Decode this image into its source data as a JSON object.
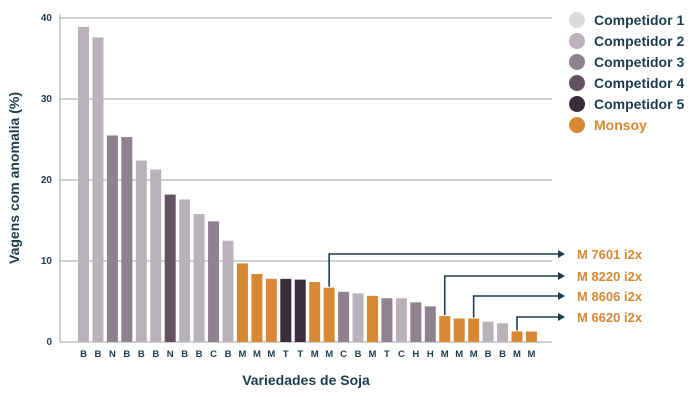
{
  "chart_data": {
    "type": "bar",
    "title": "",
    "xlabel": "Variedades de Soja",
    "ylabel": "Vagens com anomalia (%)",
    "ylim": [
      0,
      40
    ],
    "yticks": [
      0,
      10,
      20,
      30,
      40
    ],
    "grid": true,
    "legend_position": "top-right",
    "categories": [
      "B",
      "B",
      "N",
      "B",
      "B",
      "B",
      "N",
      "B",
      "B",
      "C",
      "B",
      "M",
      "M",
      "M",
      "T",
      "T",
      "M",
      "M",
      "C",
      "B",
      "M",
      "T",
      "C",
      "H",
      "H",
      "M",
      "M",
      "M",
      "B",
      "B",
      "M",
      "M"
    ],
    "values": [
      38.9,
      37.6,
      25.5,
      25.3,
      22.4,
      21.3,
      18.2,
      17.6,
      15.8,
      14.9,
      12.5,
      9.7,
      8.4,
      7.8,
      7.8,
      7.7,
      7.4,
      6.7,
      6.2,
      6.0,
      5.7,
      5.4,
      5.4,
      4.9,
      4.4,
      3.2,
      2.9,
      2.9,
      2.5,
      2.3,
      1.3,
      1.3
    ],
    "groups": [
      1,
      1,
      2,
      2,
      1,
      1,
      3,
      1,
      1,
      2,
      1,
      5,
      5,
      5,
      4,
      4,
      5,
      5,
      2,
      1,
      5,
      2,
      1,
      2,
      2,
      5,
      5,
      5,
      1,
      1,
      5,
      5
    ],
    "series": [
      {
        "name": "Competidor 1",
        "color": "#dcdadc"
      },
      {
        "name": "Competidor 2",
        "color": "#bab2b9"
      },
      {
        "name": "Competidor 3",
        "color": "#8f8190"
      },
      {
        "name": "Competidor 4",
        "color": "#635263"
      },
      {
        "name": "Competidor 5",
        "color": "#3b2c3d"
      },
      {
        "name": "Monsoy",
        "color": "#d88833"
      }
    ],
    "annotations": [
      {
        "label": "M 7601 i2x",
        "bar_index": 17
      },
      {
        "label": "M 8220 i2x",
        "bar_index": 25
      },
      {
        "label": "M 8606 i2x",
        "bar_index": 27
      },
      {
        "label": "M 6620 i2x",
        "bar_index": 30
      }
    ]
  },
  "colors": {
    "axis_text": "#1c3d4f",
    "grid": "#9aa7af",
    "annotation_line": "#1c3d4f",
    "monsoy": "#d88833"
  }
}
